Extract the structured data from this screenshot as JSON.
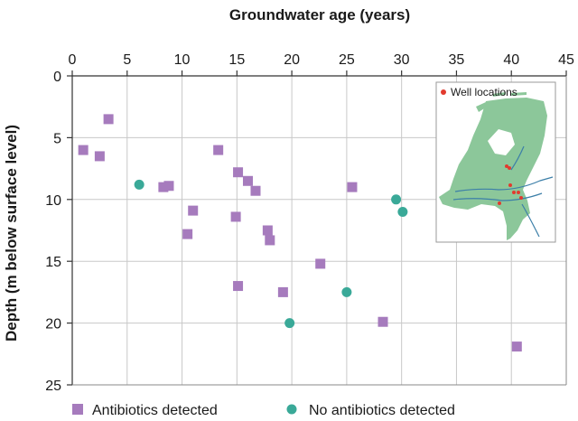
{
  "chart_data": {
    "type": "scatter",
    "xlabel": "Groundwater age (years)",
    "ylabel": "Depth (m below surface level)",
    "xlim": [
      0,
      45
    ],
    "ylim": [
      0,
      25
    ],
    "y_inverted": true,
    "x_axis_position": "top",
    "x_ticks": [
      0,
      5,
      10,
      15,
      20,
      25,
      30,
      35,
      40,
      45
    ],
    "y_ticks": [
      0,
      5,
      10,
      15,
      20,
      25
    ],
    "grid": true,
    "legend_position": "bottom",
    "series": [
      {
        "name": "Antibiotics detected",
        "marker": "square",
        "color": "#a67bbd",
        "points": [
          {
            "x": 1.0,
            "y": 6.0
          },
          {
            "x": 2.5,
            "y": 6.5
          },
          {
            "x": 3.3,
            "y": 3.5
          },
          {
            "x": 8.3,
            "y": 9.0
          },
          {
            "x": 8.8,
            "y": 8.9
          },
          {
            "x": 11.0,
            "y": 10.9
          },
          {
            "x": 10.5,
            "y": 12.8
          },
          {
            "x": 13.3,
            "y": 6.0
          },
          {
            "x": 15.1,
            "y": 7.8
          },
          {
            "x": 16.0,
            "y": 8.5
          },
          {
            "x": 16.7,
            "y": 9.3
          },
          {
            "x": 14.9,
            "y": 11.4
          },
          {
            "x": 17.8,
            "y": 12.5
          },
          {
            "x": 18.0,
            "y": 13.3
          },
          {
            "x": 15.1,
            "y": 17.0
          },
          {
            "x": 19.2,
            "y": 17.5
          },
          {
            "x": 22.6,
            "y": 15.2
          },
          {
            "x": 25.5,
            "y": 9.0
          },
          {
            "x": 28.3,
            "y": 19.9
          },
          {
            "x": 40.5,
            "y": 21.9
          }
        ]
      },
      {
        "name": "No antibiotics detected",
        "marker": "circle",
        "color": "#3aa998",
        "points": [
          {
            "x": 6.1,
            "y": 8.8
          },
          {
            "x": 19.8,
            "y": 20.0
          },
          {
            "x": 25.0,
            "y": 17.5
          },
          {
            "x": 29.5,
            "y": 10.0
          },
          {
            "x": 30.1,
            "y": 11.0
          }
        ]
      }
    ]
  },
  "inset": {
    "label": "Well locations",
    "marker_color": "#e23a2e"
  }
}
